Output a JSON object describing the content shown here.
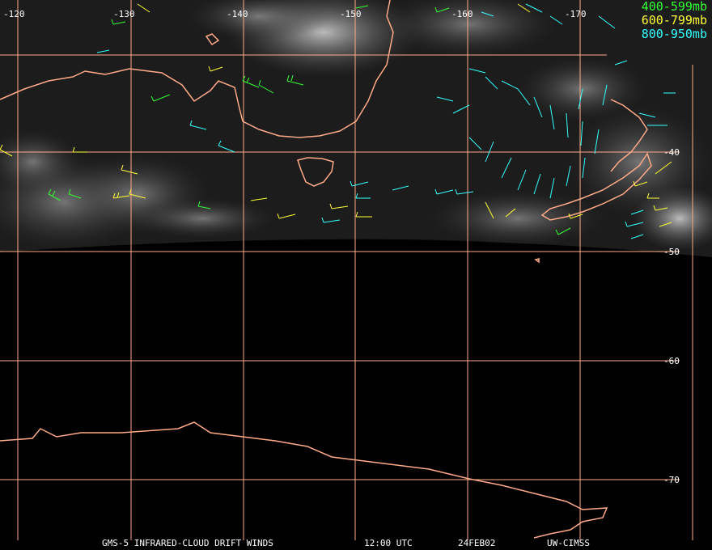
{
  "map": {
    "longitude_labels": [
      "-120",
      "-130",
      "-140",
      "-150",
      "-160",
      "-170"
    ],
    "latitude_labels": [
      "-40",
      "-50",
      "-60",
      "-70"
    ]
  },
  "legend": [
    {
      "label": "400-599mb",
      "color": "#33ff33"
    },
    {
      "label": "600-799mb",
      "color": "#ffff33"
    },
    {
      "label": "800-950mb",
      "color": "#33ffff"
    }
  ],
  "colors": {
    "coastline": "#ffaa88",
    "grid": "#ffaa88",
    "cloud": "#cfcfcf"
  },
  "caption": {
    "product": "GMS-5 INFRARED-CLOUD DRIFT WINDS",
    "time": "12:00 UTC",
    "date": "24FEB02",
    "source": "UW-CIMSS"
  }
}
